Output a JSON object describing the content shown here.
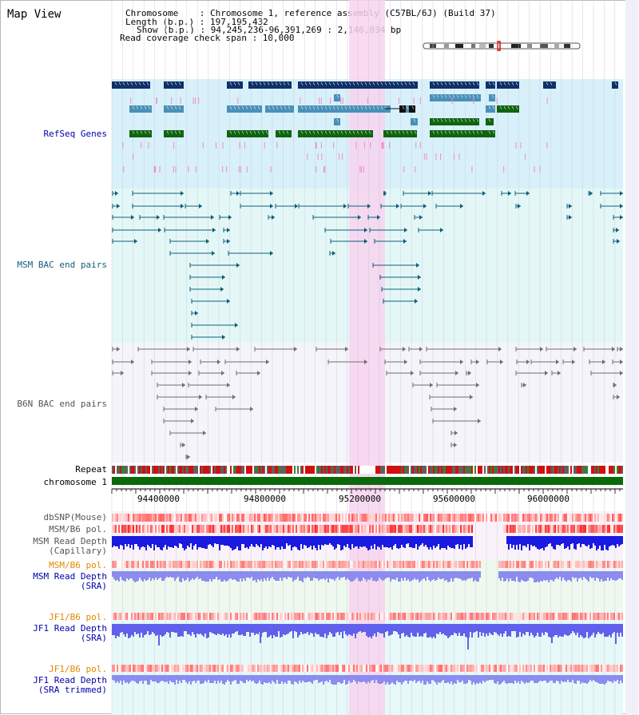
{
  "view_title": "Map View",
  "info": {
    "chromosome": "Chromosome    : Chromosome 1, reference assembly (C57BL/6J) (Build 37)",
    "length": "Length (b.p.) : 197,195,432",
    "show": "Show (b.p.) : 94,245,236-96,391,269 : 2,146,034 bp",
    "coverage": "Read coverage check span : 10,000"
  },
  "track_labels": {
    "refseq": "RefSeq Genes",
    "msm_bac": "MSM BAC end pairs",
    "b6n_bac": "B6N BAC end pairs",
    "repeat": "Repeat",
    "chromosome": "chromosome 1",
    "dbsnp": "dbSNP(Mouse)",
    "msm_pol": "MSM/B6 pol.",
    "msm_cap": "MSM Read Depth\n(Capillary)",
    "msm_pol2": "MSM/B6 pol.",
    "msm_sra": "MSM Read Depth\n(SRA)",
    "jf1_pol": "JF1/B6 pol.",
    "jf1_sra": "JF1 Read Depth\n(SRA)",
    "jf1_pol2": "JF1/B6 pol.",
    "jf1_trim": "JF1 Read Depth\n(SRA trimmed)"
  },
  "axis_ticks": [
    "94400000",
    "94800000",
    "95200000",
    "95600000",
    "96000000"
  ],
  "colors": {
    "refseq_bg": "#d8f0fa",
    "msm_bac_bg": "#e4f7f7",
    "b6n_bac_bg": "#f4f4fa",
    "highlight": "#f7d3ef",
    "gene_dark": "#0f3068",
    "gene_mid": "#4a90b8",
    "gene_green": "#106410",
    "pink_tick": "#f08cc8",
    "msm_bac_line": "#0f5f7a",
    "b6n_bac_line": "#707070",
    "chrom_green": "#0a6a0a",
    "depth_blue": "#1a1ae0",
    "sra_blue": "#8c8cf0",
    "jf1_blue": "#6060ec",
    "orange_label": "#e08a00",
    "navy_label": "#0000aa"
  }
}
